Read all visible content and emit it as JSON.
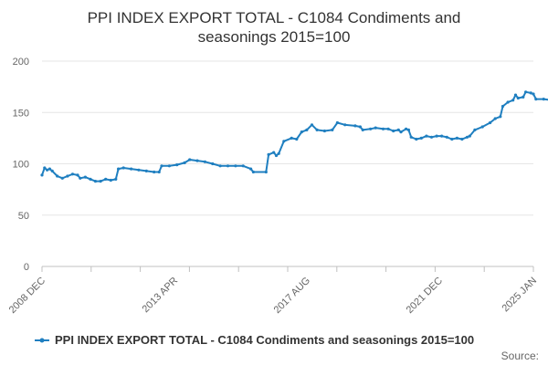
{
  "chart_data": {
    "type": "line",
    "title": "PPI INDEX EXPORT TOTAL - C1084 Condiments and seasonings 2015=100",
    "title_lines": [
      "PPI INDEX EXPORT TOTAL - C1084 Condiments and",
      "seasonings 2015=100"
    ],
    "xlabel": "",
    "ylabel": "",
    "ylim": [
      0,
      200
    ],
    "y_ticks": [
      0,
      50,
      100,
      150,
      200
    ],
    "x_ticks": [
      "2008 DEC",
      "2013 APR",
      "2017 AUG",
      "2021 DEC",
      "2025 JAN"
    ],
    "grid": true,
    "legend_position": "bottom",
    "source_label": "Source:",
    "series": [
      {
        "name": "PPI INDEX EXPORT TOTAL - C1084 Condiments and seasonings 2015=100",
        "color": "#1f7fc0",
        "points": [
          [
            "2008-12",
            89
          ],
          [
            "2009-01",
            96
          ],
          [
            "2009-02",
            94
          ],
          [
            "2009-03",
            95
          ],
          [
            "2009-04",
            93
          ],
          [
            "2009-06",
            88
          ],
          [
            "2009-08",
            86
          ],
          [
            "2009-10",
            88
          ],
          [
            "2009-12",
            90
          ],
          [
            "2010-02",
            89
          ],
          [
            "2010-03",
            86
          ],
          [
            "2010-05",
            87
          ],
          [
            "2010-07",
            85
          ],
          [
            "2010-09",
            83
          ],
          [
            "2010-11",
            83
          ],
          [
            "2011-01",
            85
          ],
          [
            "2011-03",
            84
          ],
          [
            "2011-05",
            85
          ],
          [
            "2011-06",
            95
          ],
          [
            "2011-08",
            96
          ],
          [
            "2011-11",
            95
          ],
          [
            "2012-02",
            94
          ],
          [
            "2012-05",
            93
          ],
          [
            "2012-08",
            92
          ],
          [
            "2012-10",
            92
          ],
          [
            "2012-11",
            98
          ],
          [
            "2013-02",
            98
          ],
          [
            "2013-05",
            99
          ],
          [
            "2013-08",
            101
          ],
          [
            "2013-10",
            104
          ],
          [
            "2014-01",
            103
          ],
          [
            "2014-04",
            102
          ],
          [
            "2014-07",
            100
          ],
          [
            "2014-10",
            98
          ],
          [
            "2015-01",
            98
          ],
          [
            "2015-04",
            98
          ],
          [
            "2015-07",
            98
          ],
          [
            "2015-10",
            95
          ],
          [
            "2015-11",
            92
          ],
          [
            "2016-04",
            92
          ],
          [
            "2016-05",
            109
          ],
          [
            "2016-07",
            111
          ],
          [
            "2016-08",
            108
          ],
          [
            "2016-09",
            110
          ],
          [
            "2016-11",
            122
          ],
          [
            "2017-02",
            125
          ],
          [
            "2017-04",
            124
          ],
          [
            "2017-06",
            131
          ],
          [
            "2017-08",
            133
          ],
          [
            "2017-10",
            138
          ],
          [
            "2017-12",
            133
          ],
          [
            "2018-03",
            132
          ],
          [
            "2018-06",
            133
          ],
          [
            "2018-08",
            140
          ],
          [
            "2018-11",
            138
          ],
          [
            "2019-03",
            137
          ],
          [
            "2019-05",
            136
          ],
          [
            "2019-06",
            133
          ],
          [
            "2019-09",
            134
          ],
          [
            "2019-11",
            135
          ],
          [
            "2020-02",
            134
          ],
          [
            "2020-04",
            134
          ],
          [
            "2020-06",
            132
          ],
          [
            "2020-08",
            133
          ],
          [
            "2020-09",
            131
          ],
          [
            "2020-11",
            134
          ],
          [
            "2020-12",
            133
          ],
          [
            "2021-01",
            126
          ],
          [
            "2021-03",
            124
          ],
          [
            "2021-05",
            125
          ],
          [
            "2021-07",
            127
          ],
          [
            "2021-09",
            126
          ],
          [
            "2021-11",
            127
          ],
          [
            "2022-01",
            127
          ],
          [
            "2022-03",
            126
          ],
          [
            "2022-05",
            124
          ],
          [
            "2022-07",
            125
          ],
          [
            "2022-09",
            124
          ],
          [
            "2022-11",
            126
          ],
          [
            "2022-12",
            127
          ],
          [
            "2023-02",
            133
          ],
          [
            "2023-05",
            136
          ],
          [
            "2023-08",
            140
          ],
          [
            "2023-10",
            144
          ],
          [
            "2023-12",
            146
          ],
          [
            "2024-01",
            156
          ],
          [
            "2024-03",
            160
          ],
          [
            "2024-05",
            162
          ],
          [
            "2024-06",
            167
          ],
          [
            "2024-07",
            164
          ],
          [
            "2024-09",
            165
          ],
          [
            "2024-10",
            170
          ],
          [
            "2024-12",
            169
          ],
          [
            "2025-01",
            168
          ],
          [
            "2025-02",
            163
          ],
          [
            "2025-05",
            163
          ],
          [
            "2025-08",
            162
          ],
          [
            "2025-10",
            161
          ],
          [
            "2025-12",
            159
          ],
          [
            "2026-01",
            160
          ]
        ]
      }
    ]
  }
}
